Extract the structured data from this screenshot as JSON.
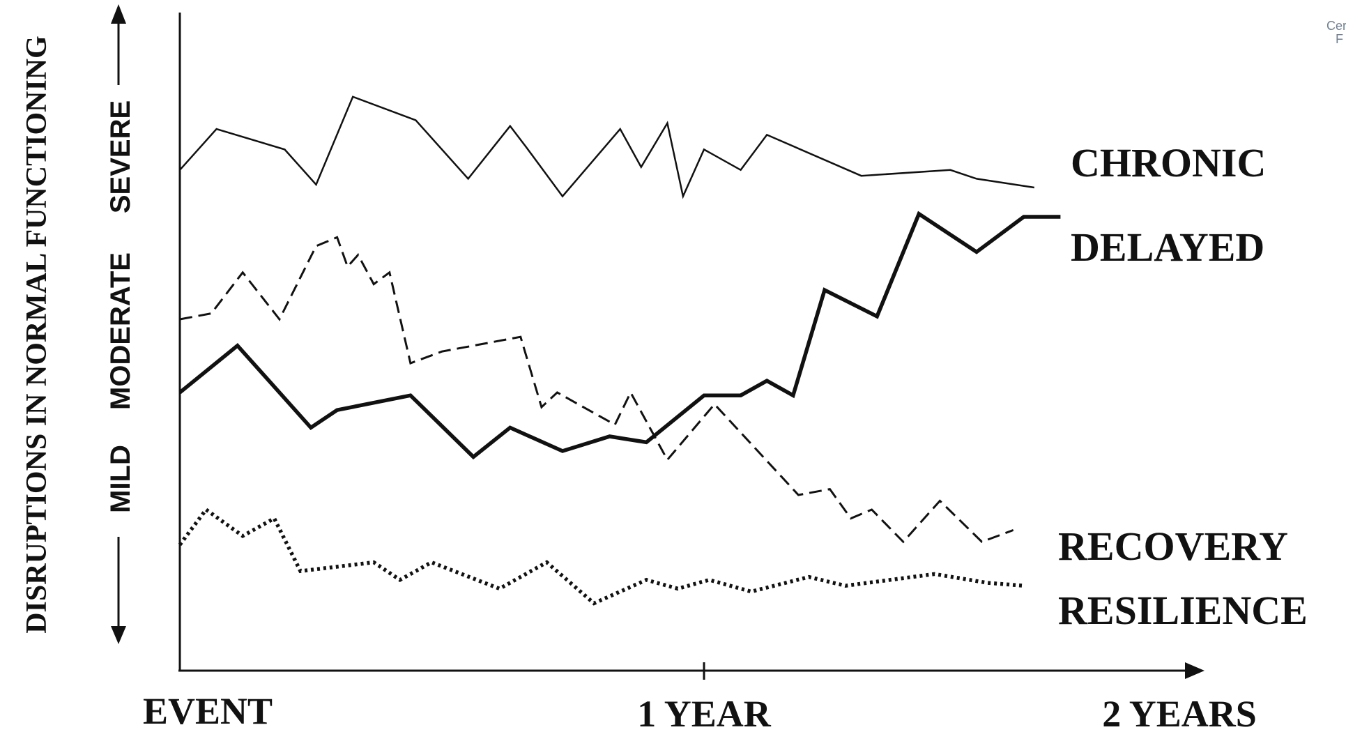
{
  "chart_data": {
    "type": "line",
    "ylabel": "DISRUPTIONS IN NORMAL FUNCTIONING",
    "severity_labels": [
      "SEVERE",
      "MODERATE",
      "MILD"
    ],
    "x_ticks": [
      "EVENT",
      "1 YEAR",
      "2 YEARS"
    ],
    "xlim": [
      0,
      2
    ],
    "ylim": [
      0,
      10
    ],
    "grid": false,
    "series": [
      {
        "name": "CHRONIC",
        "style": "thin-solid",
        "x": [
          0.0,
          0.07,
          0.2,
          0.26,
          0.33,
          0.45,
          0.55,
          0.63,
          0.66,
          0.73,
          0.84,
          0.88,
          0.93,
          0.96,
          1.0,
          1.07,
          1.12,
          1.3,
          1.47,
          1.52,
          1.63
        ],
        "y": [
          8.55,
          9.25,
          8.9,
          8.3,
          9.8,
          9.4,
          8.4,
          9.3,
          8.95,
          8.1,
          9.25,
          8.6,
          9.35,
          8.1,
          8.9,
          8.55,
          9.15,
          8.45,
          8.55,
          8.4,
          8.25
        ]
      },
      {
        "name": "DELAYED",
        "style": "thick-solid",
        "x": [
          0.0,
          0.11,
          0.25,
          0.3,
          0.44,
          0.56,
          0.63,
          0.73,
          0.82,
          0.89,
          1.0,
          1.07,
          1.12,
          1.17,
          1.23,
          1.33,
          1.41,
          1.52,
          1.61,
          1.68
        ],
        "y": [
          4.75,
          5.55,
          4.15,
          4.45,
          4.7,
          3.65,
          4.15,
          3.75,
          4.0,
          3.9,
          4.7,
          4.7,
          4.95,
          4.7,
          6.5,
          6.05,
          7.8,
          7.15,
          7.75,
          7.75
        ]
      },
      {
        "name": "RECOVERY",
        "style": "dashed",
        "x": [
          0.0,
          0.06,
          0.12,
          0.19,
          0.26,
          0.3,
          0.32,
          0.34,
          0.37,
          0.4,
          0.44,
          0.5,
          0.65,
          0.69,
          0.72,
          0.83,
          0.86,
          0.93,
          1.02,
          1.18,
          1.24,
          1.28,
          1.32,
          1.38,
          1.45,
          1.53,
          1.59
        ],
        "y": [
          6.0,
          6.1,
          6.8,
          6.0,
          7.25,
          7.4,
          6.9,
          7.1,
          6.6,
          6.8,
          5.25,
          5.45,
          5.7,
          4.5,
          4.75,
          4.2,
          4.75,
          3.6,
          4.55,
          3.0,
          3.1,
          2.6,
          2.75,
          2.2,
          2.9,
          2.2,
          2.4
        ]
      },
      {
        "name": "RESILIENCE",
        "style": "dotted",
        "x": [
          0.0,
          0.05,
          0.12,
          0.18,
          0.23,
          0.37,
          0.42,
          0.48,
          0.61,
          0.7,
          0.79,
          0.89,
          0.95,
          1.01,
          1.09,
          1.2,
          1.27,
          1.44,
          1.54,
          1.61
        ],
        "y": [
          2.15,
          2.75,
          2.3,
          2.6,
          1.7,
          1.85,
          1.55,
          1.85,
          1.4,
          1.85,
          1.15,
          1.55,
          1.4,
          1.55,
          1.35,
          1.6,
          1.45,
          1.65,
          1.5,
          1.45
        ]
      }
    ]
  },
  "watermark": {
    "line1": "Cer",
    "line2": "F"
  }
}
